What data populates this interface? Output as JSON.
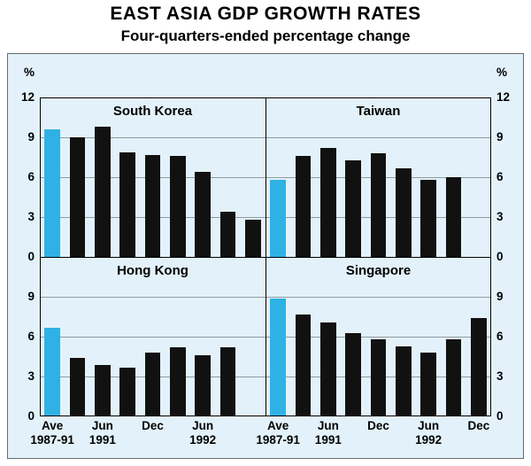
{
  "title": "EAST ASIA GDP GROWTH RATES",
  "subtitle": "Four-quarters-ended percentage change",
  "axis": {
    "unit": "%",
    "top_row_ticks": [
      12,
      9,
      6,
      3,
      0
    ],
    "bottom_row_ticks": [
      9,
      6,
      3,
      0
    ]
  },
  "colors": {
    "panel_background": "#e3f2fa",
    "average_bar": "#2eb2e6",
    "quarterly_bar": "#111111"
  },
  "chart_data": {
    "type": "bar",
    "ylim": [
      0,
      12
    ],
    "unit": "%",
    "panels": [
      {
        "title": "South Korea",
        "position": "top-left",
        "average": {
          "label": "Ave 1987-91",
          "value": 9.6
        },
        "quarterly_values": [
          9.0,
          9.8,
          7.9,
          7.7,
          7.6,
          6.4,
          3.4,
          2.8
        ]
      },
      {
        "title": "Taiwan",
        "position": "top-right",
        "average": {
          "label": "Ave 1987-91",
          "value": 5.8
        },
        "quarterly_values": [
          7.6,
          8.2,
          7.3,
          7.8,
          6.7,
          5.8,
          6.0
        ]
      },
      {
        "title": "Hong Kong",
        "position": "bottom-left",
        "average": {
          "label": "Ave 1987-91",
          "value": 6.7
        },
        "quarterly_values": [
          4.4,
          3.9,
          3.7,
          4.8,
          5.2,
          4.6,
          5.2
        ]
      },
      {
        "title": "Singapore",
        "position": "bottom-right",
        "average": {
          "label": "Ave 1987-91",
          "value": 8.9
        },
        "quarterly_values": [
          7.7,
          7.1,
          6.3,
          5.8,
          5.3,
          4.8,
          5.8,
          7.4
        ]
      }
    ],
    "x_labels": {
      "left_column": [
        {
          "slot": 0,
          "line1": "Ave",
          "line2": "1987-91"
        },
        {
          "slot": 2,
          "line1": "Jun",
          "line2": "1991"
        },
        {
          "slot": 4,
          "line1": "Dec",
          "line2": ""
        },
        {
          "slot": 6,
          "line1": "Jun",
          "line2": "1992"
        }
      ],
      "right_column": [
        {
          "slot": 0,
          "line1": "Ave",
          "line2": "1987-91"
        },
        {
          "slot": 2,
          "line1": "Jun",
          "line2": "1991"
        },
        {
          "slot": 4,
          "line1": "Dec",
          "line2": ""
        },
        {
          "slot": 6,
          "line1": "Jun",
          "line2": "1992"
        },
        {
          "slot": 8,
          "line1": "Dec",
          "line2": ""
        }
      ]
    }
  }
}
